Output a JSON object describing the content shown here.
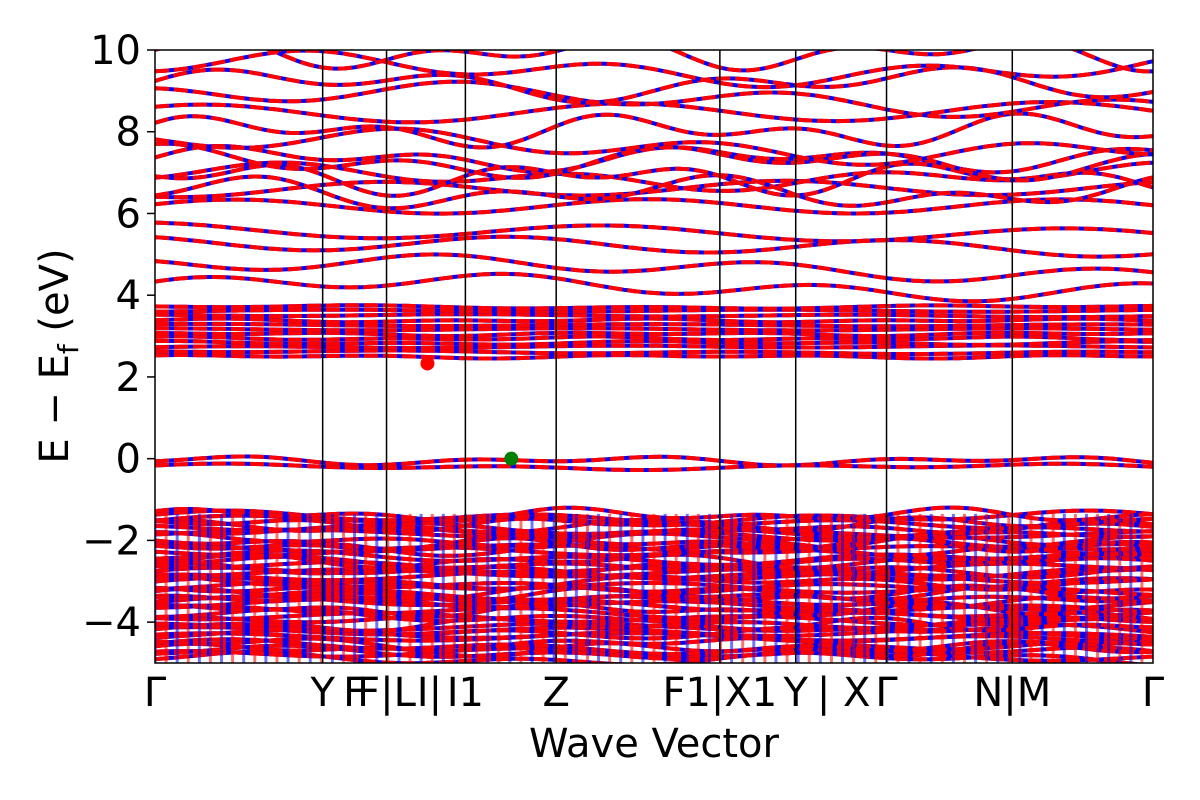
{
  "chart_data": {
    "type": "line",
    "title": "",
    "xlabel": "Wave Vector",
    "ylabel": "E − E_f (eV)",
    "ylabel_main": "E  −  E",
    "ylabel_sub": "f",
    "ylabel_unit": " (eV)",
    "ylim": [
      -5,
      10
    ],
    "y_ticks": [
      -4,
      -2,
      0,
      2,
      4,
      6,
      8,
      10
    ],
    "y_tick_labels": [
      "−4",
      "−2",
      "0",
      "2",
      "4",
      "6",
      "8",
      "10"
    ],
    "kpath_positions": [
      0,
      0.168,
      0.232,
      0.311,
      0.402,
      0.566,
      0.642,
      0.733,
      0.859,
      1.0
    ],
    "kpoint_labels": [
      {
        "pos": 0.0,
        "label": "Γ"
      },
      {
        "pos": 0.168,
        "label": "Y"
      },
      {
        "pos": 0.2,
        "label": "F"
      },
      {
        "pos": 0.232,
        "label": "F|L"
      },
      {
        "pos": 0.275,
        "label": "I|"
      },
      {
        "pos": 0.311,
        "label": "I1"
      },
      {
        "pos": 0.402,
        "label": "Z"
      },
      {
        "pos": 0.566,
        "label": "F1|X1"
      },
      {
        "pos": 0.642,
        "label": "Y"
      },
      {
        "pos": 0.69,
        "label": "| X"
      },
      {
        "pos": 0.733,
        "label": "Γ"
      },
      {
        "pos": 0.859,
        "label": "N|M"
      },
      {
        "pos": 1.0,
        "label": "Γ"
      }
    ],
    "series_colors": {
      "spin_up": "#ff0000",
      "spin_down": "#0000ff"
    },
    "cbm": {
      "k": 0.273,
      "E": 2.33,
      "color": "#ff0000"
    },
    "vbm": {
      "k": 0.357,
      "E": 0.0,
      "color": "#008000"
    },
    "valence_band_top_max": 0.0,
    "conduction_band_min": 2.33,
    "deep_valence_top": -1.35
  }
}
